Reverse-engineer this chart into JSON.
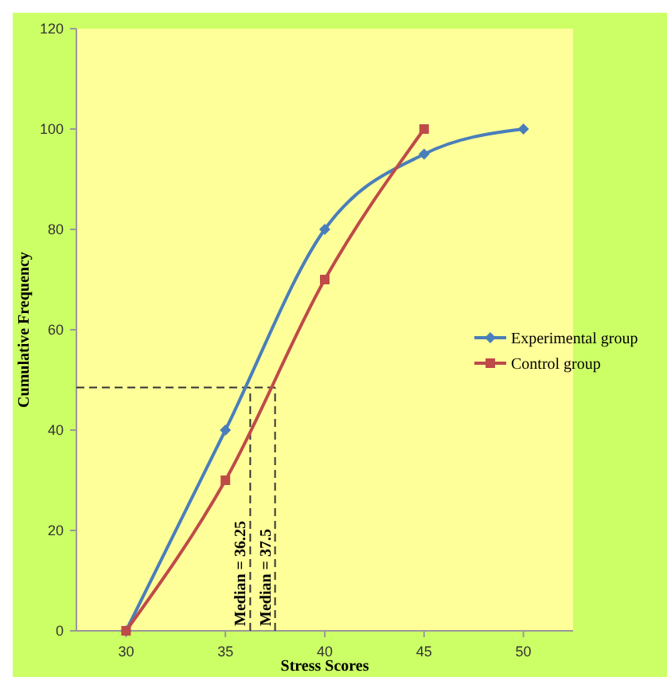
{
  "chart_data": {
    "type": "line",
    "xlabel": "Stress Scores",
    "ylabel": "Cumulative Frequency",
    "xlim": [
      27.5,
      52.5
    ],
    "xticks": [
      30,
      35,
      40,
      45,
      50
    ],
    "ylim": [
      0,
      120
    ],
    "yticks": [
      0,
      20,
      40,
      60,
      80,
      100,
      120
    ],
    "grid": false,
    "legend": "right",
    "series": [
      {
        "name": "Experimental group",
        "color": "#4a7ebb",
        "marker": "diamond",
        "x": [
          30,
          35,
          40,
          45,
          50
        ],
        "values": [
          0,
          40,
          80,
          95,
          100
        ]
      },
      {
        "name": "Control group",
        "color": "#be4b48",
        "marker": "square",
        "x": [
          30,
          35,
          40,
          45
        ],
        "values": [
          0,
          30,
          70,
          100
        ]
      }
    ],
    "ref_lines": [
      {
        "axis": "y",
        "value": 48.5,
        "line_style": "dashed",
        "color": "#333333"
      },
      {
        "axis": "x",
        "value": 36.25,
        "label": "Median = 36.25",
        "line_style": "dashed",
        "color": "#333333"
      },
      {
        "axis": "x",
        "value": 37.5,
        "label": "Median = 37.5",
        "line_style": "dashed",
        "color": "#333333"
      }
    ]
  }
}
